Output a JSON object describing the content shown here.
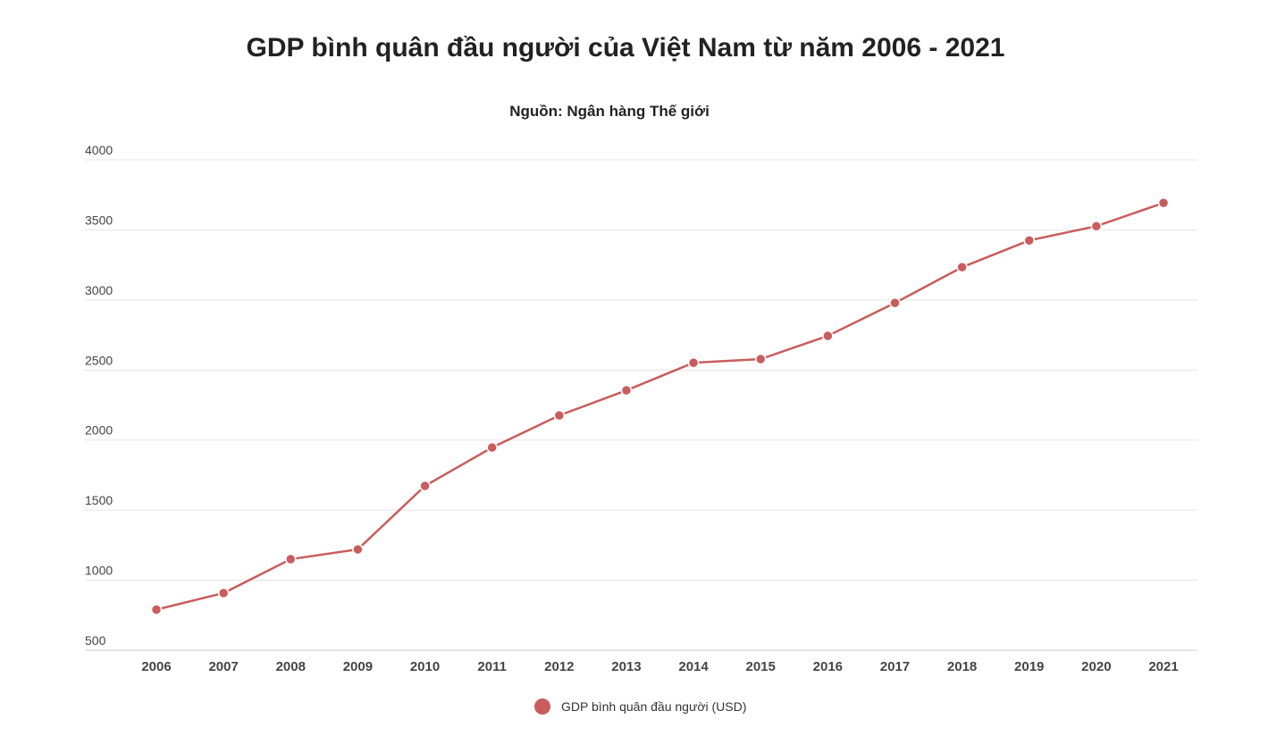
{
  "chart_data": {
    "type": "line",
    "title": "GDP bình quân đầu người của Việt Nam từ năm 2006 - 2021",
    "subtitle": "Nguồn: Ngân hàng Thế giới",
    "xlabel": "",
    "ylabel": "",
    "categories": [
      "2006",
      "2007",
      "2008",
      "2009",
      "2010",
      "2011",
      "2012",
      "2013",
      "2014",
      "2015",
      "2016",
      "2017",
      "2018",
      "2019",
      "2020",
      "2021"
    ],
    "series": [
      {
        "name": "GDP bình quân đầu người (USD)",
        "values": [
          790,
          908,
          1150,
          1220,
          1673,
          1947,
          2176,
          2355,
          2552,
          2578,
          2744,
          2979,
          3234,
          3425,
          3527,
          3693
        ],
        "color": "#c95c5c"
      }
    ],
    "ylim": [
      500,
      4000
    ],
    "yticks": [
      "500",
      "1000",
      "1500",
      "2000",
      "2500",
      "3000",
      "3500",
      "4000"
    ],
    "grid": true,
    "legend": "bottom"
  }
}
